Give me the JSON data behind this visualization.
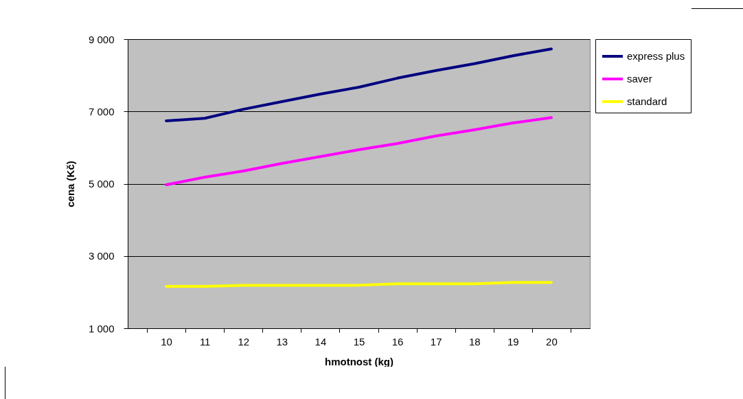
{
  "chart_data": {
    "type": "line",
    "xlabel": "hmotnost (kg)",
    "ylabel": "cena (Kč)",
    "categories": [
      "10",
      "11",
      "12",
      "13",
      "14",
      "15",
      "16",
      "17",
      "18",
      "19",
      "20"
    ],
    "series": [
      {
        "name": "express plus",
        "color": "#000080",
        "values": [
          6740,
          6810,
          7060,
          7270,
          7480,
          7670,
          7920,
          8130,
          8320,
          8540,
          8730
        ]
      },
      {
        "name": "saver",
        "color": "#ff00ff",
        "values": [
          4970,
          5180,
          5350,
          5560,
          5750,
          5940,
          6110,
          6320,
          6490,
          6680,
          6830
        ]
      },
      {
        "name": "standard",
        "color": "#ffff00",
        "values": [
          2160,
          2160,
          2190,
          2190,
          2190,
          2190,
          2230,
          2230,
          2230,
          2270,
          2270
        ]
      }
    ],
    "ylim": [
      1000,
      9000
    ],
    "yticks": [
      {
        "value": 1000,
        "label": "1 000"
      },
      {
        "value": 3000,
        "label": "3 000"
      },
      {
        "value": 5000,
        "label": "5 000"
      },
      {
        "value": 7000,
        "label": "7 000"
      },
      {
        "value": 9000,
        "label": "9 000"
      }
    ],
    "grid": "y",
    "legend": "right",
    "line_style": "solid",
    "marker": "none"
  }
}
